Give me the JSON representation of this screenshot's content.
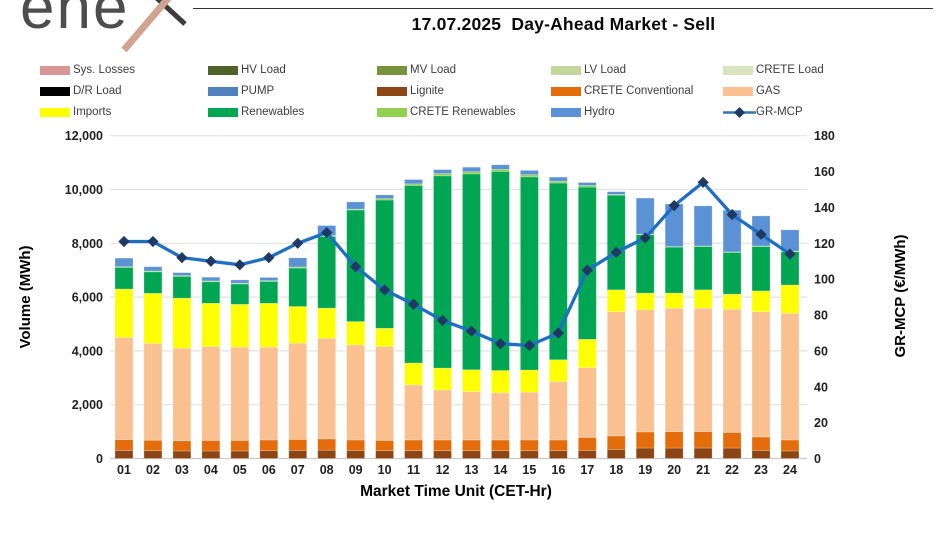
{
  "logo": {
    "text": "ene"
  },
  "header": {
    "title": "17.07.2025  Day-Ahead Market - Sell"
  },
  "legend": {
    "items": [
      {
        "label": "Sys. Losses",
        "color": "#d99694",
        "glyph": "swatch",
        "col": 0,
        "row": 0
      },
      {
        "label": "HV Load",
        "color": "#4f6228",
        "glyph": "swatch",
        "col": 1,
        "row": 0
      },
      {
        "label": "MV Load",
        "color": "#77933c",
        "glyph": "swatch",
        "col": 2,
        "row": 0
      },
      {
        "label": "LV Load",
        "color": "#c3d69b",
        "glyph": "swatch",
        "col": 3,
        "row": 0
      },
      {
        "label": "CRETE Load",
        "color": "#d7e4bd",
        "glyph": "swatch",
        "col": 4,
        "row": 0
      },
      {
        "label": "D/R Load",
        "color": "#000000",
        "glyph": "swatch",
        "col": 0,
        "row": 1
      },
      {
        "label": "PUMP",
        "color": "#4f81bd",
        "glyph": "swatch",
        "col": 1,
        "row": 1
      },
      {
        "label": "Lignite",
        "color": "#8d4613",
        "glyph": "swatch",
        "col": 2,
        "row": 1
      },
      {
        "label": "CRETE Conventional",
        "color": "#e46c0a",
        "glyph": "swatch",
        "col": 3,
        "row": 1
      },
      {
        "label": "GAS",
        "color": "#fac090",
        "glyph": "swatch",
        "col": 4,
        "row": 1
      },
      {
        "label": "Imports",
        "color": "#ffff00",
        "glyph": "swatch",
        "col": 0,
        "row": 2
      },
      {
        "label": "Renewables",
        "color": "#00a651",
        "glyph": "swatch",
        "col": 1,
        "row": 2
      },
      {
        "label": "CRETE Renewables",
        "color": "#92d050",
        "glyph": "swatch",
        "col": 2,
        "row": 2
      },
      {
        "label": "Hydro",
        "color": "#5b92d5",
        "glyph": "swatch",
        "col": 3,
        "row": 2
      },
      {
        "label": "GR-MCP",
        "color": "#2e75b6",
        "marker_color": "#1f3864",
        "glyph": "line-diamond",
        "col": 4,
        "row": 2
      }
    ]
  },
  "chart_data": {
    "type": "bar",
    "subtype": "stacked-bars-with-line",
    "title": "17.07.2025  Day-Ahead Market - Sell",
    "xlabel": "Market Time Unit (CET-Hr)",
    "y_left": {
      "label": "Volume (MWh)",
      "min": 0,
      "max": 12000,
      "step": 2000
    },
    "y_right": {
      "label": "GR-MCP (€/MWh)",
      "min": 0,
      "max": 180,
      "step": 20
    },
    "grid": "horizontal",
    "legend_position": "top",
    "categories": [
      "01",
      "02",
      "03",
      "04",
      "05",
      "06",
      "07",
      "08",
      "09",
      "10",
      "11",
      "12",
      "13",
      "14",
      "15",
      "16",
      "17",
      "18",
      "19",
      "20",
      "21",
      "22",
      "23",
      "24"
    ],
    "bar_series": [
      {
        "name": "Lignite",
        "color": "#8d4613",
        "values": [
          300,
          290,
          280,
          280,
          280,
          290,
          300,
          310,
          300,
          290,
          290,
          290,
          290,
          290,
          290,
          290,
          300,
          340,
          390,
          390,
          390,
          390,
          300,
          280
        ]
      },
      {
        "name": "CRETE Conventional",
        "color": "#e46c0a",
        "values": [
          400,
          390,
          380,
          390,
          390,
          400,
          410,
          420,
          390,
          380,
          400,
          400,
          400,
          400,
          400,
          400,
          480,
          500,
          600,
          610,
          610,
          580,
          500,
          410
        ]
      },
      {
        "name": "GAS",
        "color": "#fac090",
        "values": [
          3800,
          3600,
          3440,
          3490,
          3470,
          3450,
          3580,
          3740,
          3530,
          3490,
          2050,
          1860,
          1800,
          1750,
          1780,
          2170,
          2600,
          4620,
          4540,
          4590,
          4590,
          4580,
          4660,
          4710
        ]
      },
      {
        "name": "Imports",
        "color": "#ffff00",
        "values": [
          1800,
          1860,
          1860,
          1610,
          1590,
          1630,
          1360,
          1120,
          870,
          680,
          810,
          810,
          810,
          830,
          820,
          810,
          1050,
          810,
          620,
          560,
          680,
          560,
          770,
          1050
        ]
      },
      {
        "name": "Renewables",
        "color": "#00a651",
        "values": [
          800,
          800,
          810,
          800,
          760,
          810,
          1430,
          2660,
          4150,
          4770,
          6600,
          7150,
          7280,
          7400,
          7180,
          6570,
          5660,
          3520,
          2170,
          1710,
          1610,
          1550,
          1650,
          1240
        ]
      },
      {
        "name": "CRETE Renewables",
        "color": "#92d050",
        "values": [
          30,
          30,
          30,
          30,
          30,
          30,
          40,
          40,
          30,
          50,
          60,
          80,
          80,
          80,
          80,
          70,
          60,
          30,
          20,
          20,
          20,
          20,
          20,
          20
        ]
      },
      {
        "name": "Hydro",
        "color": "#5b92d5",
        "values": [
          320,
          160,
          110,
          140,
          120,
          120,
          340,
          370,
          270,
          140,
          160,
          150,
          170,
          170,
          160,
          150,
          110,
          100,
          1340,
          1580,
          1490,
          1550,
          1120,
          790
        ]
      }
    ],
    "line_series": {
      "name": "GR-MCP",
      "axis": "right",
      "color": "#1e6fc4",
      "marker": "diamond",
      "marker_color": "#1f3864",
      "values": [
        121,
        121,
        112,
        110,
        108,
        112,
        120,
        126,
        107,
        94,
        86,
        77,
        71,
        64,
        63,
        70,
        105,
        115,
        123,
        141,
        154,
        136,
        125,
        114
      ]
    }
  }
}
